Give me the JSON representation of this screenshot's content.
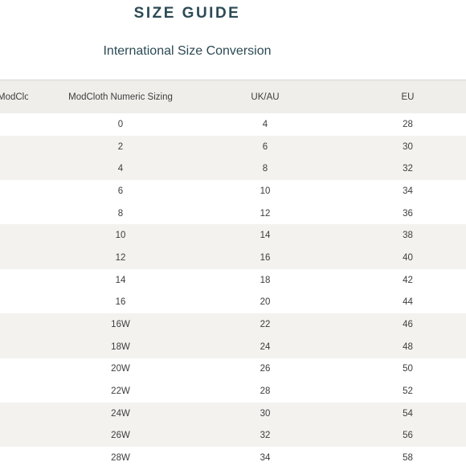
{
  "header": {
    "title": "SIZE GUIDE",
    "subtitle": "International Size Conversion"
  },
  "table": {
    "columns": [
      "ModCloth Sizing",
      "ModCloth Numeric Sizing",
      "UK/AU",
      "EU"
    ],
    "rows": [
      {
        "size": "",
        "numeric": "0",
        "ukau": "4",
        "eu": "28"
      },
      {
        "size": "",
        "numeric": "2",
        "ukau": "6",
        "eu": "30"
      },
      {
        "size": "",
        "numeric": "4",
        "ukau": "8",
        "eu": "32"
      },
      {
        "size": "",
        "numeric": "6",
        "ukau": "10",
        "eu": "34"
      },
      {
        "size": "",
        "numeric": "8",
        "ukau": "12",
        "eu": "36"
      },
      {
        "size": "",
        "numeric": "10",
        "ukau": "14",
        "eu": "38"
      },
      {
        "size": "",
        "numeric": "12",
        "ukau": "16",
        "eu": "40"
      },
      {
        "size": "",
        "numeric": "14",
        "ukau": "18",
        "eu": "42"
      },
      {
        "size": "",
        "numeric": "16",
        "ukau": "20",
        "eu": "44"
      },
      {
        "size": "",
        "numeric": "16W",
        "ukau": "22",
        "eu": "46"
      },
      {
        "size": "",
        "numeric": "18W",
        "ukau": "24",
        "eu": "48"
      },
      {
        "size": "",
        "numeric": "20W",
        "ukau": "26",
        "eu": "50"
      },
      {
        "size": "",
        "numeric": "22W",
        "ukau": "28",
        "eu": "52"
      },
      {
        "size": "",
        "numeric": "24W",
        "ukau": "30",
        "eu": "54"
      },
      {
        "size": "",
        "numeric": "26W",
        "ukau": "32",
        "eu": "56"
      },
      {
        "size": "",
        "numeric": "28W",
        "ukau": "34",
        "eu": "58"
      }
    ],
    "row_shading": [
      "plain",
      "shade",
      "shade",
      "plain",
      "plain",
      "shade",
      "shade",
      "plain",
      "plain",
      "shade",
      "shade",
      "plain",
      "plain",
      "shade",
      "shade",
      "plain"
    ]
  },
  "colors": {
    "heading": "#2c4a55",
    "header_row_bg": "#efeeeb",
    "shaded_row_bg": "#f3f2ef",
    "text": "#3d3d3d"
  }
}
